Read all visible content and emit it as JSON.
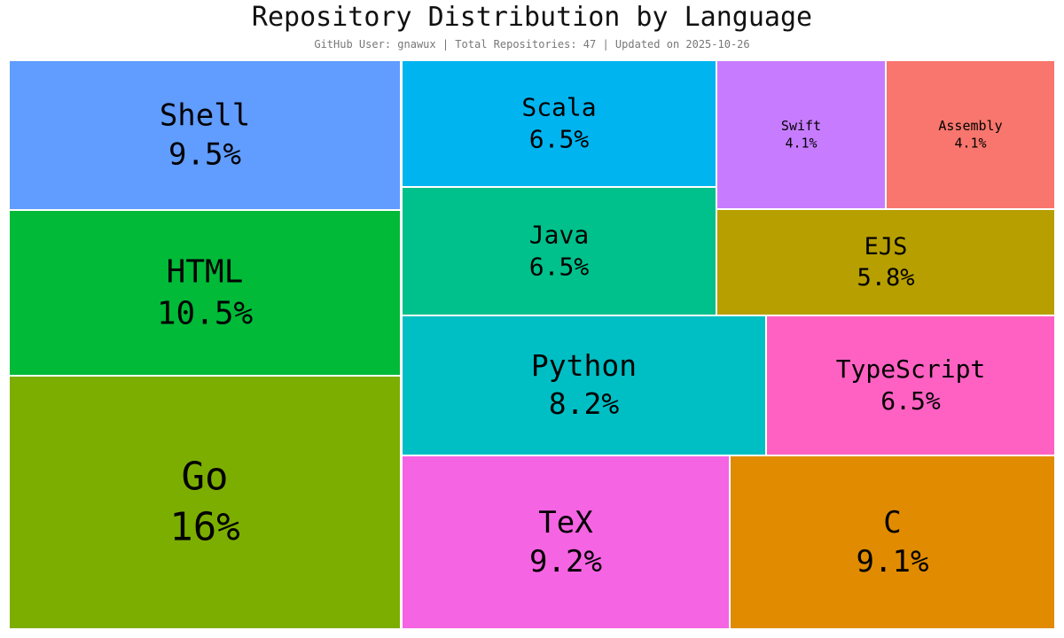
{
  "chart_data": {
    "type": "treemap",
    "title": "Repository Distribution by Language",
    "subtitle": "GitHub User: gnawux | Total Repositories: 47 | Updated on 2025-10-26",
    "tiles": [
      {
        "name": "Shell",
        "percent_label": "9.5%",
        "value": 9.5,
        "color": "#619CFF"
      },
      {
        "name": "HTML",
        "percent_label": "10.5%",
        "value": 10.5,
        "color": "#00BA38"
      },
      {
        "name": "Go",
        "percent_label": "16%",
        "value": 16,
        "color": "#7CAE00"
      },
      {
        "name": "Scala",
        "percent_label": "6.5%",
        "value": 6.5,
        "color": "#00B4EF"
      },
      {
        "name": "Java",
        "percent_label": "6.5%",
        "value": 6.5,
        "color": "#00C08B"
      },
      {
        "name": "Swift",
        "percent_label": "4.1%",
        "value": 4.1,
        "color": "#C77CFF"
      },
      {
        "name": "Assembly",
        "percent_label": "4.1%",
        "value": 4.1,
        "color": "#F8766D"
      },
      {
        "name": "EJS",
        "percent_label": "5.8%",
        "value": 5.8,
        "color": "#B79F00"
      },
      {
        "name": "Python",
        "percent_label": "8.2%",
        "value": 8.2,
        "color": "#00BFC4"
      },
      {
        "name": "TypeScript",
        "percent_label": "6.5%",
        "value": 6.5,
        "color": "#FF61C3"
      },
      {
        "name": "TeX",
        "percent_label": "9.2%",
        "value": 9.2,
        "color": "#F564E3"
      },
      {
        "name": "C",
        "percent_label": "9.1%",
        "value": 9.1,
        "color": "#E08B00"
      }
    ]
  }
}
